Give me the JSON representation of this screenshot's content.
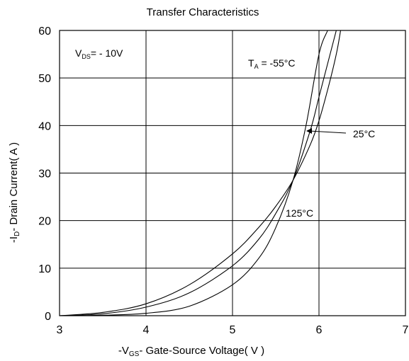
{
  "chart_data": {
    "type": "line",
    "title": "Transfer Characteristics",
    "xlabel": {
      "prefix": "-V",
      "sub": "GS",
      "rest": "- Gate-Source Voltage( V )"
    },
    "ylabel": {
      "prefix": "-I",
      "sub": "D",
      "rest": "- Drain Current( A )"
    },
    "xlim": [
      3,
      7
    ],
    "ylim": [
      0,
      60
    ],
    "xticks": [
      "3",
      "4",
      "5",
      "6",
      "7"
    ],
    "yticks": [
      "0",
      "10",
      "20",
      "30",
      "40",
      "50",
      "60"
    ],
    "grid": true,
    "legend": "none",
    "condition": {
      "prefix": "V",
      "sub": "DS",
      "rest": "= - 10V"
    },
    "annotations": {
      "ta": {
        "prefix": "T",
        "sub": "A",
        "rest": " = -55°C"
      },
      "t25": "25°C",
      "t125": "125°C"
    },
    "series": [
      {
        "name": "-55°C",
        "x": [
          3.0,
          3.5,
          4.0,
          4.5,
          5.0,
          5.3,
          5.5,
          5.7,
          5.85,
          6.0,
          6.1
        ],
        "y": [
          0,
          0.1,
          0.5,
          2.0,
          6.5,
          12.0,
          18.5,
          28.5,
          40.0,
          55.0,
          60.0
        ]
      },
      {
        "name": "25°C",
        "x": [
          3.0,
          3.5,
          4.0,
          4.5,
          5.0,
          5.3,
          5.5,
          5.7,
          5.9,
          6.0,
          6.1,
          6.2
        ],
        "y": [
          0,
          0.4,
          1.8,
          4.8,
          10.5,
          16.0,
          21.5,
          28.5,
          39.0,
          46.0,
          53.0,
          60.0
        ]
      },
      {
        "name": "125°C",
        "x": [
          3.0,
          3.5,
          4.0,
          4.5,
          5.0,
          5.3,
          5.5,
          5.7,
          5.9,
          6.0,
          6.1,
          6.2,
          6.25
        ],
        "y": [
          0,
          0.7,
          2.5,
          6.5,
          13.0,
          18.5,
          23.0,
          28.5,
          36.0,
          41.0,
          47.5,
          55.0,
          60.0
        ]
      }
    ]
  }
}
